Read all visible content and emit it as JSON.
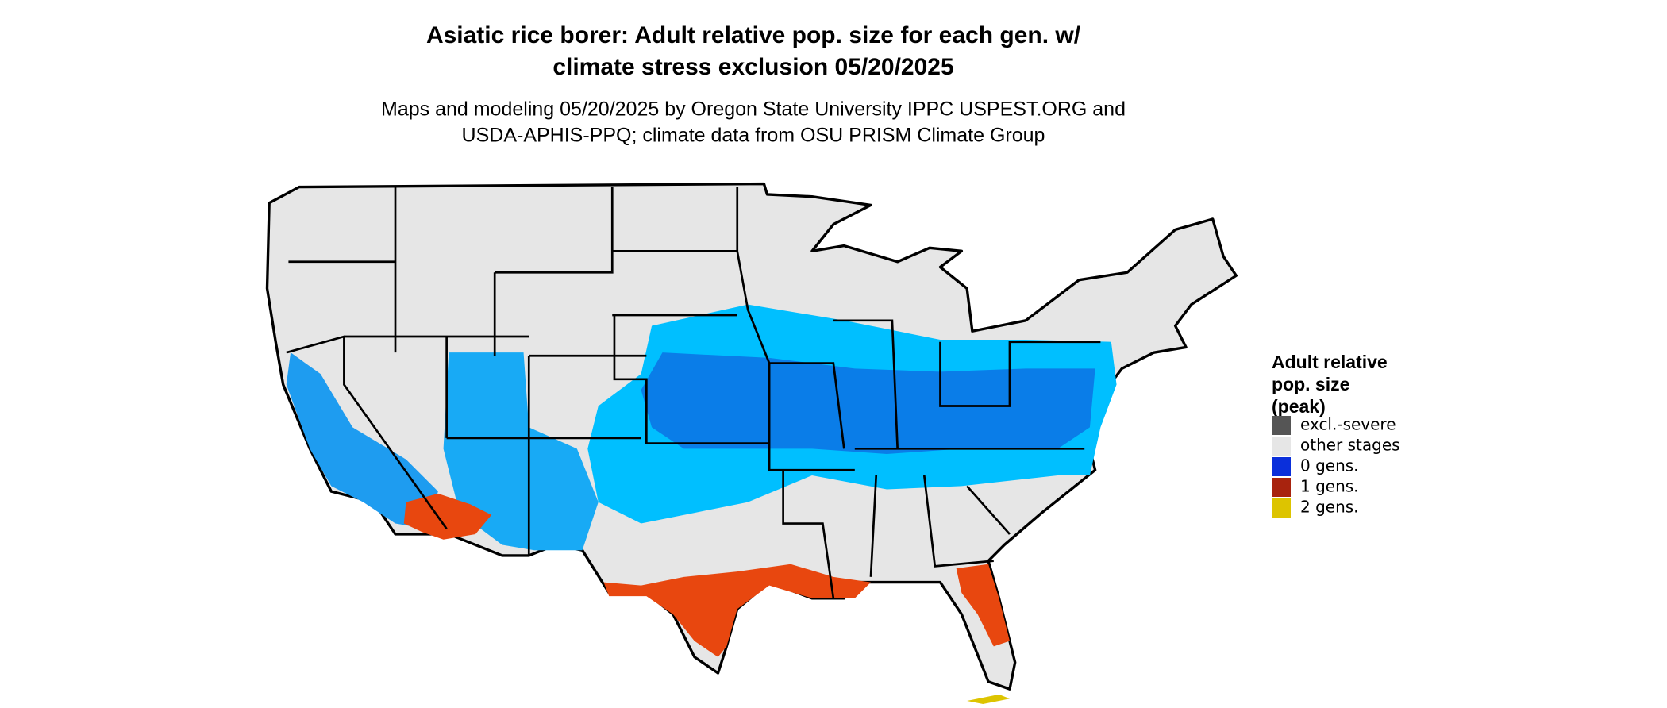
{
  "title": [
    "Asiatic rice borer: Adult relative pop. size for each gen. w/",
    "climate stress exclusion 05/20/2025"
  ],
  "subtitle": [
    "Maps and modeling 05/20/2025 by Oregon State University IPPC USPEST.ORG and",
    "USDA-APHIS-PPQ; climate data from OSU PRISM Climate Group"
  ],
  "legend": {
    "title": [
      "Adult relative",
      "pop. size",
      "(peak)"
    ],
    "items": [
      {
        "label": "excl.-severe",
        "color": "#555555"
      },
      {
        "label": "other stages",
        "color": "#e6e6e6"
      },
      {
        "label": "0 gens.",
        "color": "#0a2fdb"
      },
      {
        "label": "1 gens.",
        "color": "#a8230e"
      },
      {
        "label": "2 gens.",
        "color": "#ddc400"
      }
    ]
  }
}
